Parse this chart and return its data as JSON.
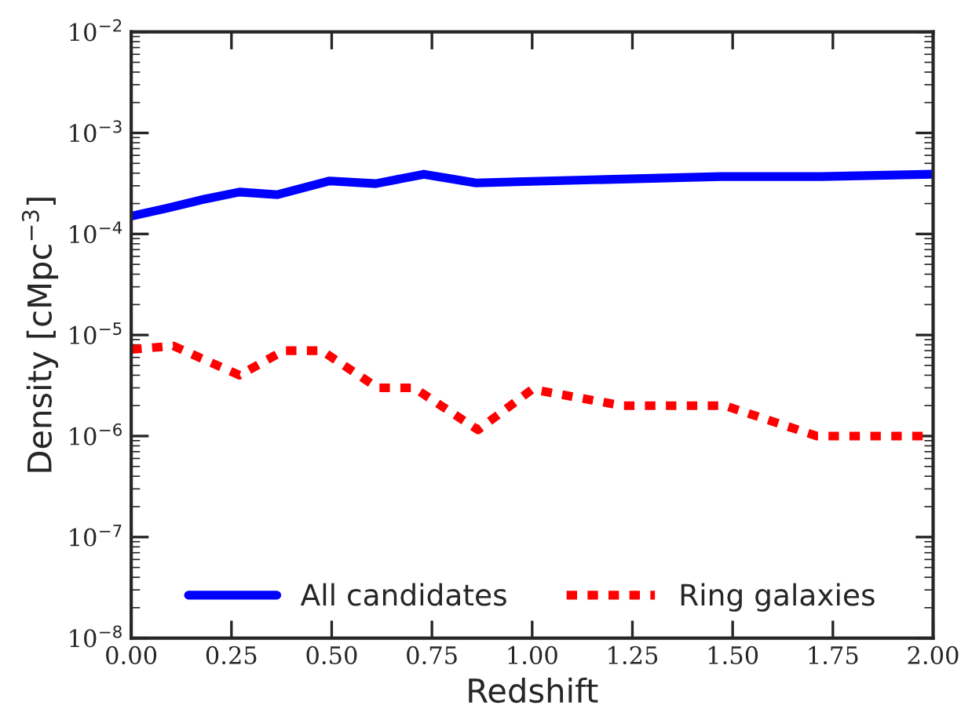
{
  "chart_data": {
    "type": "line",
    "xlabel": "Redshift",
    "ylabel": "Density [cMpc$^{−3}$]",
    "log": "y",
    "xlim": [
      0,
      2
    ],
    "xticks": [
      {
        "value": 0,
        "label": "0.00"
      },
      {
        "value": 0.25,
        "label": "0.25"
      },
      {
        "value": 0.5,
        "label": "0.50"
      },
      {
        "value": 0.75,
        "label": "0.75"
      },
      {
        "value": 1,
        "label": "1.00"
      },
      {
        "value": 1.25,
        "label": "1.25"
      },
      {
        "value": 1.5,
        "label": "1.50"
      },
      {
        "value": 1.75,
        "label": "1.75"
      },
      {
        "value": 2,
        "label": "2.00"
      }
    ],
    "ylim": [
      1e-08,
      0.01
    ],
    "yticks": [
      {
        "value": 1e-08,
        "label": "10$^{−8}$"
      },
      {
        "value": 1e-07,
        "label": "10$^{−7}$"
      },
      {
        "value": 1e-06,
        "label": "10$^{−6}$"
      },
      {
        "value": 1e-05,
        "label": "10$^{−5}$"
      },
      {
        "value": 0.0001,
        "label": "10$^{−4}$"
      },
      {
        "value": 0.001,
        "label": "10$^{−3}$"
      },
      {
        "value": 0.01,
        "label": "10$^{−2}$"
      }
    ],
    "grid": false,
    "legend": "bottom",
    "series": [
      {
        "name": "All candidates",
        "color": "#0000ff",
        "line_style": "solid",
        "x": [
          0,
          0.09,
          0.18,
          0.27,
          0.365,
          0.495,
          0.61,
          0.73,
          0.86,
          0.98,
          1.47,
          1.72,
          2.0
        ],
        "values": [
          0.00015,
          0.00018,
          0.00022,
          0.00026,
          0.000245,
          0.000335,
          0.000315,
          0.00039,
          0.00032,
          0.00033,
          0.00037,
          0.00037,
          0.00039
        ]
      },
      {
        "name": "Ring galaxies",
        "color": "#ff0000",
        "line_style": "dotted",
        "x": [
          0,
          0.105,
          0.27,
          0.38,
          0.475,
          0.615,
          0.705,
          0.865,
          1.0,
          1.225,
          1.48,
          1.71,
          2.0
        ],
        "values": [
          7.2e-06,
          7.8e-06,
          4e-06,
          7e-06,
          7e-06,
          3e-06,
          3e-06,
          1.15e-06,
          2.9e-06,
          2e-06,
          2e-06,
          1e-06,
          1e-06
        ]
      }
    ]
  }
}
